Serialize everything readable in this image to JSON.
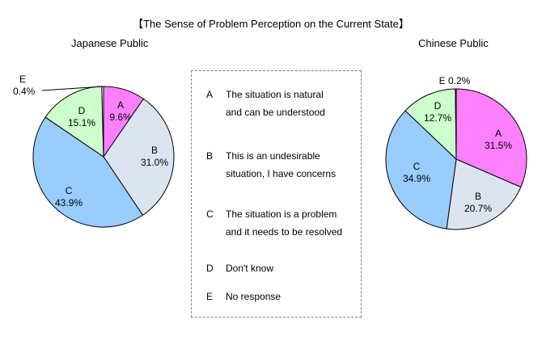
{
  "title": "【The Sense of Problem Perception on the Current State】",
  "legend": [
    {
      "key": "A",
      "lines": [
        "The situation is natural",
        "and can be understood"
      ]
    },
    {
      "key": "B",
      "lines": [
        "This is an undesirable",
        "situation, I have concerns"
      ]
    },
    {
      "key": "C",
      "lines": [
        "The situation is a problem",
        "and it needs to be resolved"
      ]
    },
    {
      "key": "D",
      "lines": [
        "Don't know"
      ]
    },
    {
      "key": "E",
      "lines": [
        "No response"
      ]
    }
  ],
  "colors": {
    "A": "#ff80ff",
    "B": "#dce4f0",
    "C": "#99ccff",
    "D": "#ccffcc",
    "E": "#ffffff",
    "stroke": "#000000"
  },
  "chart_data": [
    {
      "type": "pie",
      "title": "Japanese Public",
      "categories": [
        "A",
        "B",
        "C",
        "D",
        "E"
      ],
      "values": [
        9.6,
        31.0,
        43.9,
        15.1,
        0.4
      ],
      "value_labels": [
        "9.6%",
        "31.0%",
        "43.9%",
        "15.1%",
        "0.4%"
      ]
    },
    {
      "type": "pie",
      "title": "Chinese Public",
      "categories": [
        "A",
        "B",
        "C",
        "D",
        "E"
      ],
      "values": [
        31.5,
        20.7,
        34.9,
        12.7,
        0.2
      ],
      "value_labels": [
        "31.5%",
        "20.7%",
        "34.9%",
        "12.7%",
        "0.2%"
      ]
    }
  ]
}
